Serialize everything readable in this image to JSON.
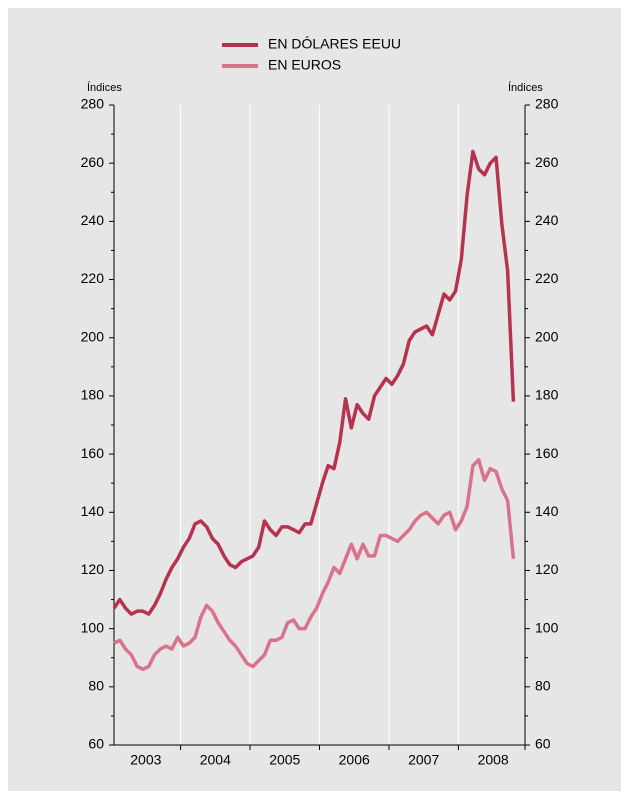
{
  "chart_data": {
    "type": "line",
    "y_axis_label": "Índices",
    "y2_axis_label": "Índices",
    "categories": [
      null,
      null,
      null,
      null,
      null,
      null,
      "2003",
      null,
      null,
      null,
      null,
      null,
      null,
      null,
      null,
      null,
      null,
      null,
      "2004",
      null,
      null,
      null,
      null,
      null,
      null,
      null,
      null,
      null,
      null,
      null,
      "2005",
      null,
      null,
      null,
      null,
      null,
      null,
      null,
      null,
      null,
      null,
      null,
      "2006",
      null,
      null,
      null,
      null,
      null,
      null,
      null,
      null,
      null,
      null,
      null,
      "2007",
      null,
      null,
      null,
      null,
      null,
      null,
      null,
      null,
      null,
      null,
      null,
      "2008",
      null,
      null,
      null
    ],
    "series": [
      {
        "name": "EN DÓLARES EEUU",
        "color": "#b5334f",
        "values": [
          107,
          110,
          107,
          105,
          106,
          106,
          105,
          108,
          112,
          117,
          121,
          124,
          128,
          131,
          136,
          137,
          135,
          131,
          129,
          125,
          122,
          121,
          123,
          124,
          125,
          128,
          137,
          134,
          132,
          135,
          135,
          134,
          133,
          136,
          136,
          143,
          150,
          156,
          155,
          164,
          179,
          169,
          177,
          174,
          172,
          180,
          183,
          186,
          184,
          187,
          191,
          199,
          202,
          203,
          204,
          201,
          208,
          215,
          213,
          216,
          227,
          249,
          264,
          258,
          256,
          260,
          262,
          239,
          223,
          178
        ]
      },
      {
        "name": "EN EUROS",
        "color": "#d9738b",
        "values": [
          95,
          96,
          93,
          91,
          87,
          86,
          87,
          91,
          93,
          94,
          93,
          97,
          94,
          95,
          97,
          104,
          108,
          106,
          102,
          99,
          96,
          94,
          91,
          88,
          87,
          89,
          91,
          96,
          96,
          97,
          102,
          103,
          100,
          100,
          104,
          107,
          112,
          116,
          121,
          119,
          124,
          129,
          124,
          129,
          125,
          125,
          132,
          132,
          131,
          130,
          132,
          134,
          137,
          139,
          140,
          138,
          136,
          139,
          140,
          134,
          137,
          142,
          156,
          158,
          151,
          155,
          154,
          148,
          144,
          124
        ]
      }
    ],
    "ylim": [
      60,
      280
    ],
    "yticks": [
      60,
      80,
      100,
      120,
      140,
      160,
      180,
      200,
      220,
      240,
      260,
      280
    ],
    "y2lim": [
      60,
      280
    ],
    "y2ticks": [
      60,
      80,
      100,
      120,
      140,
      160,
      180,
      200,
      220,
      240,
      260,
      280
    ],
    "grid": "x"
  }
}
